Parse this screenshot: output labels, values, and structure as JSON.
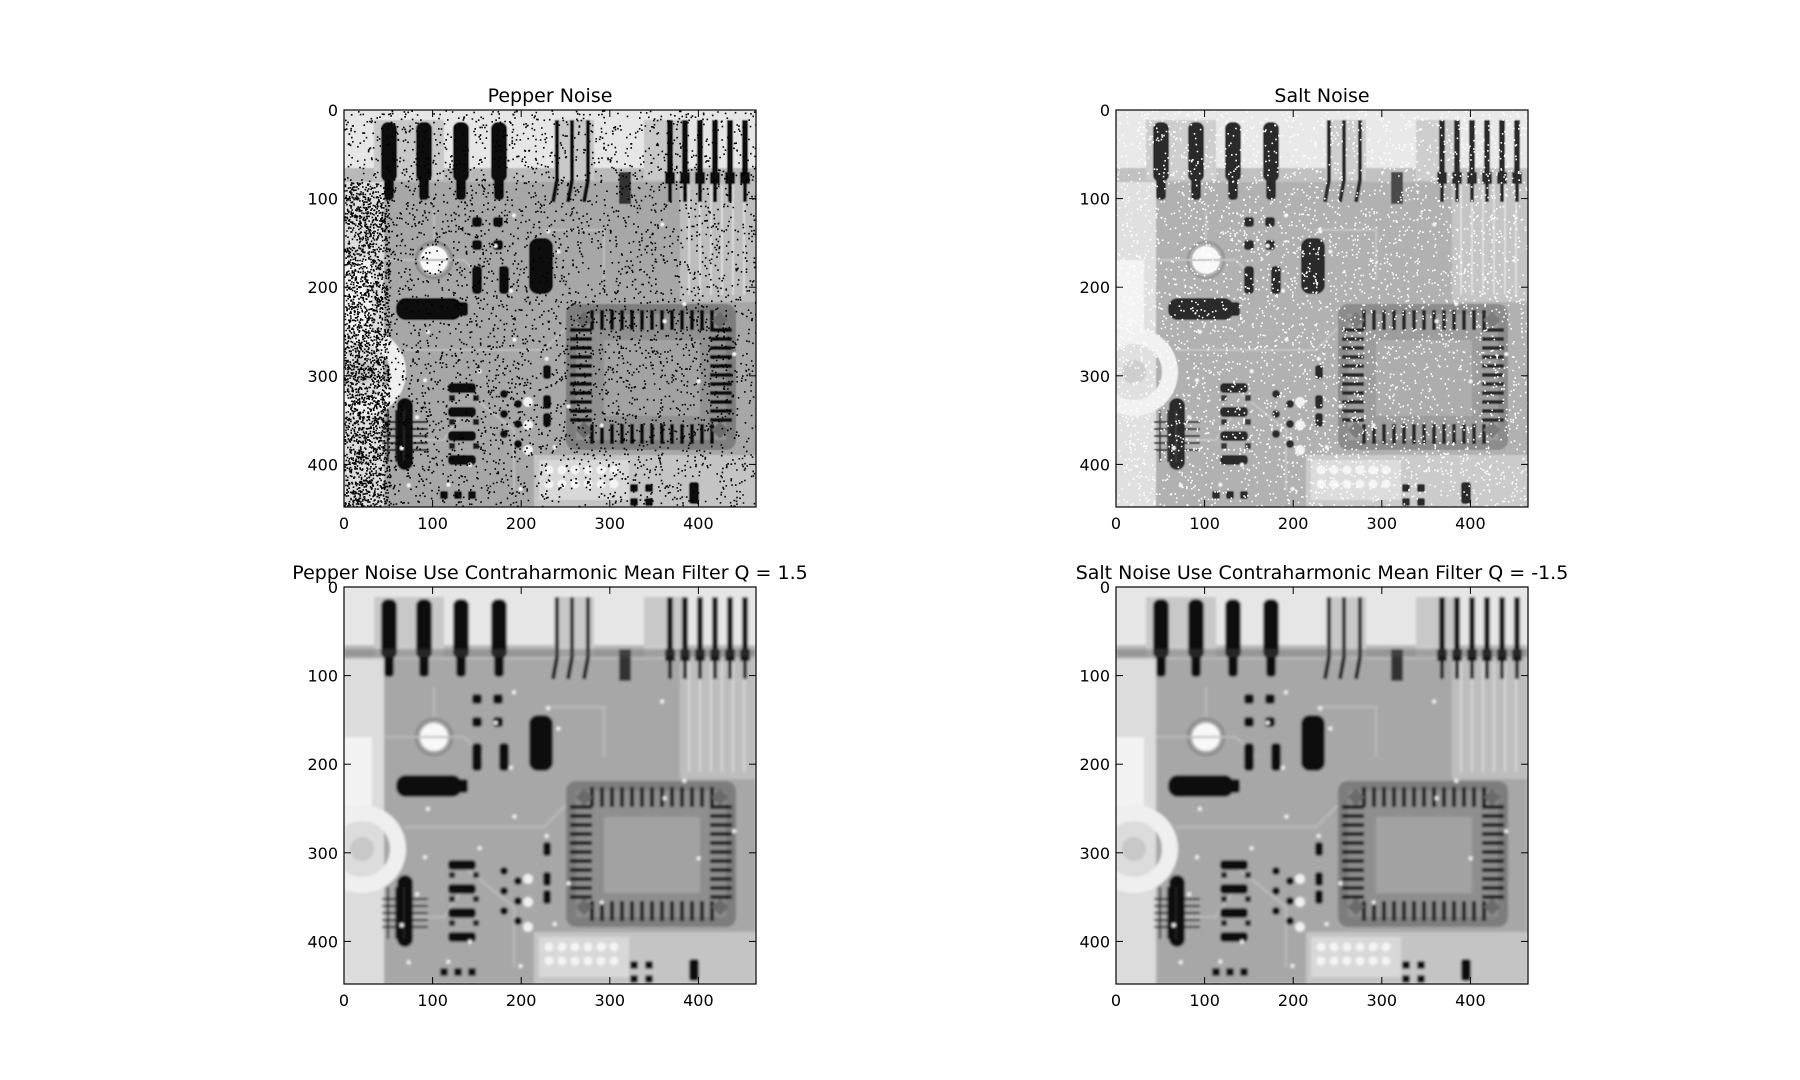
{
  "figure": {
    "panels": [
      {
        "title": "Pepper Noise",
        "noise": "pepper",
        "x_ticks": [
          "0",
          "100",
          "200",
          "300",
          "400"
        ],
        "y_ticks": [
          "0",
          "100",
          "200",
          "300",
          "400"
        ]
      },
      {
        "title": "Salt Noise",
        "noise": "salt",
        "x_ticks": [
          "0",
          "100",
          "200",
          "300",
          "400"
        ],
        "y_ticks": [
          "0",
          "100",
          "200",
          "300",
          "400"
        ]
      },
      {
        "title": "Pepper Noise Use Contraharmonic Mean Filter Q = 1.5",
        "noise": "filtered",
        "x_ticks": [
          "0",
          "100",
          "200",
          "300",
          "400"
        ],
        "y_ticks": [
          "0",
          "100",
          "200",
          "300",
          "400"
        ]
      },
      {
        "title": "Salt Noise Use Contraharmonic Mean Filter Q = -1.5",
        "noise": "filtered",
        "x_ticks": [
          "0",
          "100",
          "200",
          "300",
          "400"
        ],
        "y_ticks": [
          "0",
          "100",
          "200",
          "300",
          "400"
        ]
      }
    ]
  }
}
